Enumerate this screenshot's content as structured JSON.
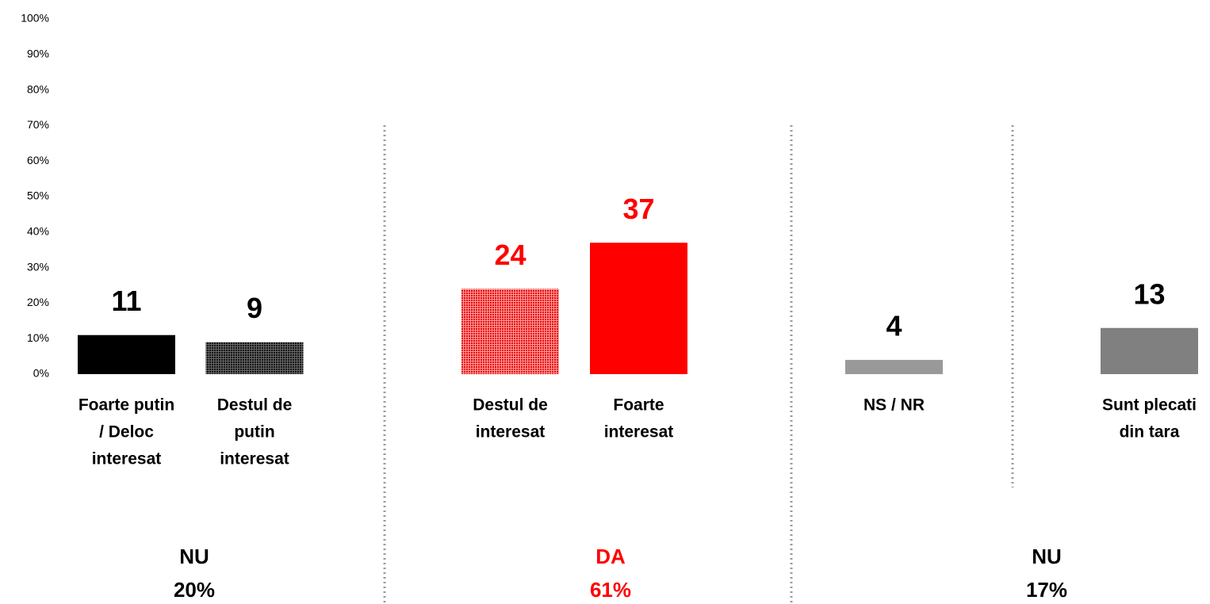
{
  "chart_data": {
    "type": "bar",
    "categories": [
      [
        "Foarte putin",
        "/ Deloc",
        "interesat"
      ],
      [
        "Destul de",
        "putin",
        "interesat"
      ],
      [
        "Destul de",
        "interesat"
      ],
      [
        "Foarte",
        "interesat"
      ],
      [
        "NS / NR"
      ],
      [
        "Sunt plecati",
        "din tara"
      ]
    ],
    "values": [
      11,
      9,
      24,
      37,
      4,
      13
    ],
    "colors": [
      "#000000",
      "#333333",
      "#ff0000",
      "#ff0000",
      "#999999",
      "#808080"
    ],
    "patterns": [
      false,
      true,
      true,
      false,
      false,
      false
    ],
    "label_colors": [
      "#000000",
      "#000000",
      "#ff0000",
      "#ff0000",
      "#000000",
      "#000000"
    ],
    "ylim": [
      0,
      100
    ],
    "yticks": [
      {
        "value": 0,
        "label": "0%"
      },
      {
        "value": 10,
        "label": "10%"
      },
      {
        "value": 20,
        "label": "20%"
      },
      {
        "value": 30,
        "label": "30%"
      },
      {
        "value": 40,
        "label": "40%"
      },
      {
        "value": 50,
        "label": "50%"
      },
      {
        "value": 60,
        "label": "60%"
      },
      {
        "value": 70,
        "label": "70%"
      },
      {
        "value": 80,
        "label": "80%"
      },
      {
        "value": 90,
        "label": "90%"
      },
      {
        "value": 100,
        "label": "100%"
      }
    ],
    "groups": [
      {
        "name": "NU",
        "value": 20,
        "value_label": "20%",
        "color": "#000000"
      },
      {
        "name": "DA",
        "value": 61,
        "value_label": "61%",
        "color": "#ff0000"
      },
      {
        "name": "NU",
        "value": 17,
        "value_label": "17%",
        "color": "#000000"
      }
    ]
  }
}
